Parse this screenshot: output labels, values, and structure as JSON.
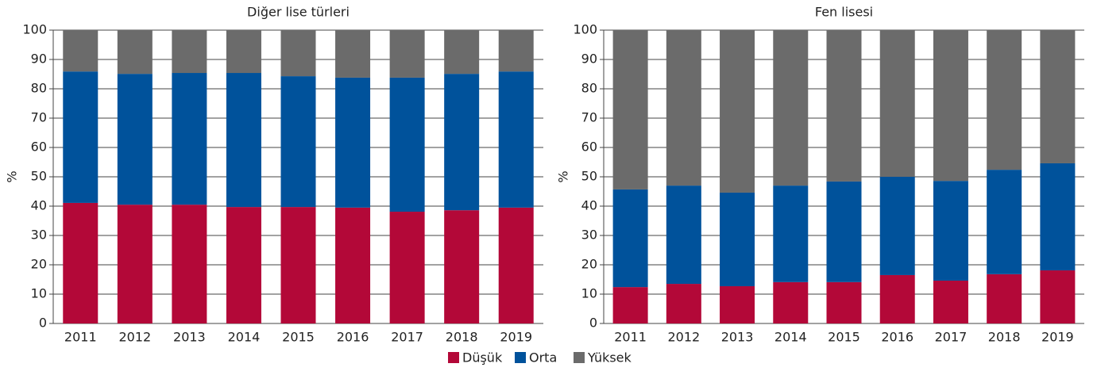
{
  "chart_data": [
    {
      "type": "stacked_bar",
      "title": "Diğer lise türleri",
      "y_label": "%",
      "categories": [
        "2011",
        "2012",
        "2013",
        "2014",
        "2015",
        "2016",
        "2017",
        "2018",
        "2019"
      ],
      "series": [
        {
          "name": "Düşük",
          "color": "#b30838",
          "values": [
            41.1,
            40.5,
            40.5,
            39.7,
            39.7,
            39.5,
            38.1,
            38.6,
            39.5
          ]
        },
        {
          "name": "Orta",
          "color": "#00529b",
          "values": [
            44.8,
            44.6,
            44.9,
            45.7,
            44.6,
            44.3,
            45.7,
            46.5,
            46.4
          ]
        },
        {
          "name": "Yüksek",
          "color": "#6b6b6b",
          "values": [
            14.1,
            14.9,
            14.6,
            14.6,
            15.7,
            16.2,
            16.2,
            14.9,
            14.1
          ]
        }
      ],
      "ylim": [
        0,
        100
      ],
      "yticks": [
        0,
        10,
        20,
        30,
        40,
        50,
        60,
        70,
        80,
        90,
        100
      ],
      "grid": true
    },
    {
      "type": "stacked_bar",
      "title": "Fen lisesi",
      "y_label": "%",
      "categories": [
        "2011",
        "2012",
        "2013",
        "2014",
        "2015",
        "2016",
        "2017",
        "2018",
        "2019"
      ],
      "series": [
        {
          "name": "Düşük",
          "color": "#b30838",
          "values": [
            12.4,
            13.5,
            12.7,
            14.1,
            14.1,
            16.5,
            14.6,
            16.8,
            18.1
          ]
        },
        {
          "name": "Orta",
          "color": "#00529b",
          "values": [
            33.3,
            33.5,
            31.9,
            32.9,
            34.3,
            33.5,
            34.0,
            35.6,
            36.5
          ]
        },
        {
          "name": "Yüksek",
          "color": "#6b6b6b",
          "values": [
            54.3,
            53.0,
            55.4,
            53.0,
            51.6,
            50.0,
            51.4,
            47.6,
            45.4
          ]
        }
      ],
      "ylim": [
        0,
        100
      ],
      "yticks": [
        0,
        10,
        20,
        30,
        40,
        50,
        60,
        70,
        80,
        90,
        100
      ],
      "grid": true
    }
  ]
}
